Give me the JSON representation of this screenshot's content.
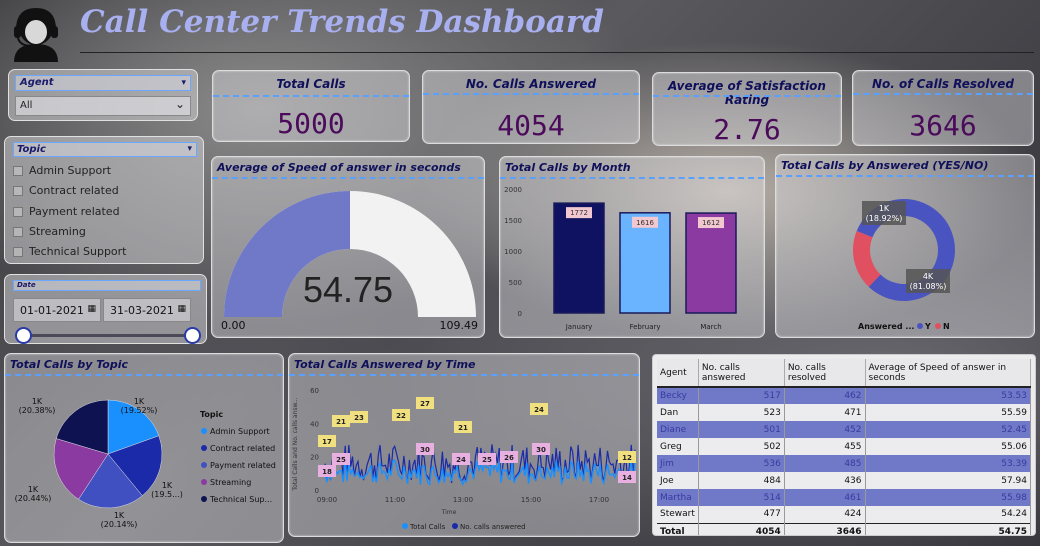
{
  "header": {
    "title": "Call Center Trends Dashboard",
    "logo_icon": "headset-agent-icon"
  },
  "slicers": {
    "agent": {
      "label": "Agent",
      "value": "All"
    },
    "topic": {
      "label": "Topic",
      "items": [
        "Admin Support",
        "Contract related",
        "Payment related",
        "Streaming",
        "Technical Support"
      ]
    },
    "date": {
      "label": "Date",
      "start": "01-01-2021",
      "end": "31-03-2021"
    }
  },
  "kpis": {
    "total_calls": {
      "label": "Total Calls",
      "value": "5000"
    },
    "answered": {
      "label": "No. Calls Answered",
      "value": "4054"
    },
    "satisfaction": {
      "label": "Average of Satisfaction Rating",
      "value": "2.76"
    },
    "resolved": {
      "label": "No. of Calls Resolved",
      "value": "3646"
    }
  },
  "gauge": {
    "title": "Average of Speed of answer in seconds",
    "value": "54.75",
    "min": "0.00",
    "max": "109.49",
    "fraction": 0.5
  },
  "colors": {
    "gauge_fill": "#7078c8",
    "bar1": "#0e1260",
    "bar2": "#6ab4ff",
    "bar3": "#8a3aa0",
    "donut_y": "#4a54c0",
    "donut_n": "#e05060"
  },
  "chart_data": [
    {
      "type": "bar",
      "title": "Total Calls by Month",
      "categories": [
        "January",
        "February",
        "March"
      ],
      "values": [
        1772,
        1616,
        1612
      ],
      "ylim": [
        0,
        2000
      ],
      "yticks": [
        "0",
        "500",
        "1000",
        "1500",
        "2000"
      ],
      "data_labels": [
        "1772",
        "1616",
        "1612"
      ]
    },
    {
      "type": "pie",
      "title": "Total Calls by Answered (YES/NO)",
      "legend_title": "Answered ...",
      "legend": [
        "Y",
        "N"
      ],
      "slices": [
        {
          "name": "Y",
          "value": 81.08,
          "label": "4K",
          "pct": "(81.08%)"
        },
        {
          "name": "N",
          "value": 18.92,
          "label": "1K",
          "pct": "(18.92%)"
        }
      ]
    },
    {
      "type": "pie",
      "title": "Total Calls by Topic",
      "legend_title": "Topic",
      "slices": [
        {
          "name": "Admin Support",
          "value": 19.52,
          "color": "#1a90ff",
          "label": "1K",
          "pct": "(19.52%)"
        },
        {
          "name": "Contract related",
          "value": 19.52,
          "color": "#1a2aa8",
          "label": "1K",
          "pct": "(19.5...)"
        },
        {
          "name": "Payment related",
          "value": 20.14,
          "color": "#4050c0",
          "label": "1K",
          "pct": "(20.14%)"
        },
        {
          "name": "Streaming",
          "value": 20.44,
          "color": "#8a3aa0",
          "label": "1K",
          "pct": "(20.44%)"
        },
        {
          "name": "Technical Support",
          "value": 20.38,
          "color": "#0e1250",
          "label": "1K",
          "pct": "(20.38%)"
        }
      ],
      "legend_labels": [
        "Admin Support",
        "Contract related",
        "Payment related",
        "Streaming",
        "Technical Sup..."
      ]
    },
    {
      "type": "line",
      "title": "Total Calls Answered by Time",
      "ylabel": "Total Calls and No. calls answ...",
      "xlabel": "Time",
      "xticks": [
        "09:00",
        "11:00",
        "13:00",
        "15:00",
        "17:00"
      ],
      "yticks": [
        "0",
        "20",
        "40",
        "60"
      ],
      "ylim": [
        0,
        60
      ],
      "series": [
        {
          "name": "Total Calls",
          "color": "#1a90ff"
        },
        {
          "name": "No. calls answered",
          "color": "#1a2aa8"
        }
      ],
      "peak_labels": [
        "17",
        "21",
        "23",
        "22",
        "27",
        "21",
        "24",
        "12",
        "18",
        "25",
        "30",
        "24",
        "25",
        "26",
        "30",
        "14"
      ]
    }
  ],
  "table": {
    "columns": [
      "Agent",
      "No. calls answered",
      "No. calls resolved",
      "Average of Speed of answer in seconds"
    ],
    "rows": [
      [
        "Becky",
        "517",
        "462",
        "53.53"
      ],
      [
        "Dan",
        "523",
        "471",
        "55.59"
      ],
      [
        "Diane",
        "501",
        "452",
        "52.45"
      ],
      [
        "Greg",
        "502",
        "455",
        "55.06"
      ],
      [
        "Jim",
        "536",
        "485",
        "53.39"
      ],
      [
        "Joe",
        "484",
        "436",
        "57.94"
      ],
      [
        "Martha",
        "514",
        "461",
        "55.98"
      ],
      [
        "Stewart",
        "477",
        "424",
        "54.24"
      ]
    ],
    "total": [
      "Total",
      "4054",
      "3646",
      "54.75"
    ]
  }
}
